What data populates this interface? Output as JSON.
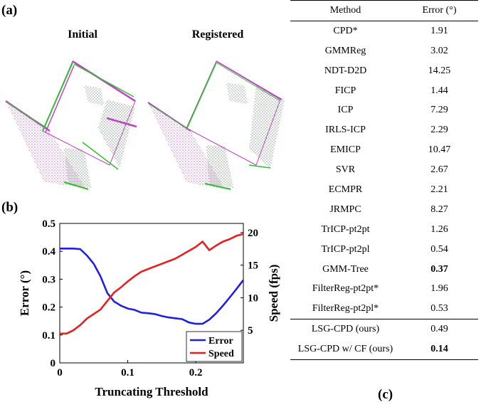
{
  "panel_a": {
    "label": "(a)",
    "initial_title": "Initial",
    "registered_title": "Registered",
    "point_colors": {
      "source": "#2fbf2f",
      "target": "#c040c8"
    }
  },
  "panel_b": {
    "label": "(b)"
  },
  "chart_data": {
    "type": "line",
    "xlabel": "Truncating Threshold",
    "ylabel_left": "Error (°)",
    "ylabel_right": "Speed (fps)",
    "xlim": [
      0,
      0.27
    ],
    "ylim_left": [
      0,
      0.5
    ],
    "ylim_right": [
      0,
      21.4
    ],
    "x_ticks": [
      0,
      0.1,
      0.2
    ],
    "x_tick_labels": [
      "0",
      "0.1",
      "0.2"
    ],
    "y_left_ticks": [
      0,
      0.1,
      0.2,
      0.3,
      0.4,
      0.5
    ],
    "y_left_tick_labels": [
      "0",
      "0.1",
      "0.2",
      "0.3",
      "0.4",
      "0.5"
    ],
    "y_right_ticks": [
      5,
      10,
      15,
      20
    ],
    "y_right_tick_labels": [
      "5",
      "10",
      "15",
      "20"
    ],
    "legend_position": "bottom-right",
    "grid": false,
    "series": [
      {
        "name": "Error",
        "axis": "left",
        "color": "#1f1fe6",
        "x": [
          0,
          0.01,
          0.02,
          0.03,
          0.04,
          0.05,
          0.06,
          0.07,
          0.08,
          0.09,
          0.1,
          0.11,
          0.12,
          0.13,
          0.14,
          0.15,
          0.16,
          0.17,
          0.18,
          0.19,
          0.2,
          0.21,
          0.22,
          0.23,
          0.24,
          0.25,
          0.26,
          0.27
        ],
        "values": [
          0.41,
          0.41,
          0.41,
          0.408,
          0.385,
          0.355,
          0.31,
          0.25,
          0.22,
          0.205,
          0.195,
          0.19,
          0.18,
          0.178,
          0.175,
          0.168,
          0.163,
          0.16,
          0.157,
          0.145,
          0.14,
          0.14,
          0.155,
          0.178,
          0.205,
          0.235,
          0.265,
          0.297
        ]
      },
      {
        "name": "Speed",
        "axis": "right",
        "color": "#e61f1f",
        "x": [
          0,
          0.01,
          0.02,
          0.03,
          0.04,
          0.05,
          0.06,
          0.07,
          0.08,
          0.09,
          0.1,
          0.11,
          0.12,
          0.13,
          0.14,
          0.15,
          0.16,
          0.17,
          0.18,
          0.19,
          0.2,
          0.21,
          0.22,
          0.23,
          0.24,
          0.25,
          0.26,
          0.27
        ],
        "values": [
          4.5,
          4.5,
          5.0,
          5.8,
          6.8,
          7.5,
          8.2,
          9.5,
          10.8,
          11.6,
          12.5,
          13.3,
          14.0,
          14.4,
          14.8,
          15.2,
          15.6,
          16.0,
          16.6,
          17.2,
          17.8,
          18.6,
          17.3,
          18.0,
          18.6,
          19.0,
          19.5,
          19.8
        ]
      }
    ]
  },
  "table": {
    "label": "(c)",
    "header": {
      "method": "Method",
      "error": "Error (°)"
    },
    "rows": [
      {
        "method": "CPD*",
        "error": "1.91"
      },
      {
        "method": "GMMReg",
        "error": "3.02"
      },
      {
        "method": "NDT-D2D",
        "error": "14.25"
      },
      {
        "method": "FICP",
        "error": "1.44"
      },
      {
        "method": "ICP",
        "error": "7.29"
      },
      {
        "method": "IRLS-ICP",
        "error": "2.29"
      },
      {
        "method": "EMICP",
        "error": "10.47"
      },
      {
        "method": "SVR",
        "error": "2.67"
      },
      {
        "method": "ECMPR",
        "error": "2.21"
      },
      {
        "method": "JRMPC",
        "error": "8.27"
      },
      {
        "method": "TrICP-pt2pt",
        "error": "1.26"
      },
      {
        "method": "TrICP-pt2pl",
        "error": "0.54"
      },
      {
        "method": "GMM-Tree",
        "error": "0.37"
      },
      {
        "method": "FilterReg-pt2pt*",
        "error": "1.96"
      },
      {
        "method": "FilterReg-pt2pl*",
        "error": "0.53"
      },
      {
        "method": "LSG-CPD (ours)",
        "error": "0.49"
      },
      {
        "method": "LSG-CPD w/ CF (ours)",
        "error": "0.14"
      }
    ]
  }
}
